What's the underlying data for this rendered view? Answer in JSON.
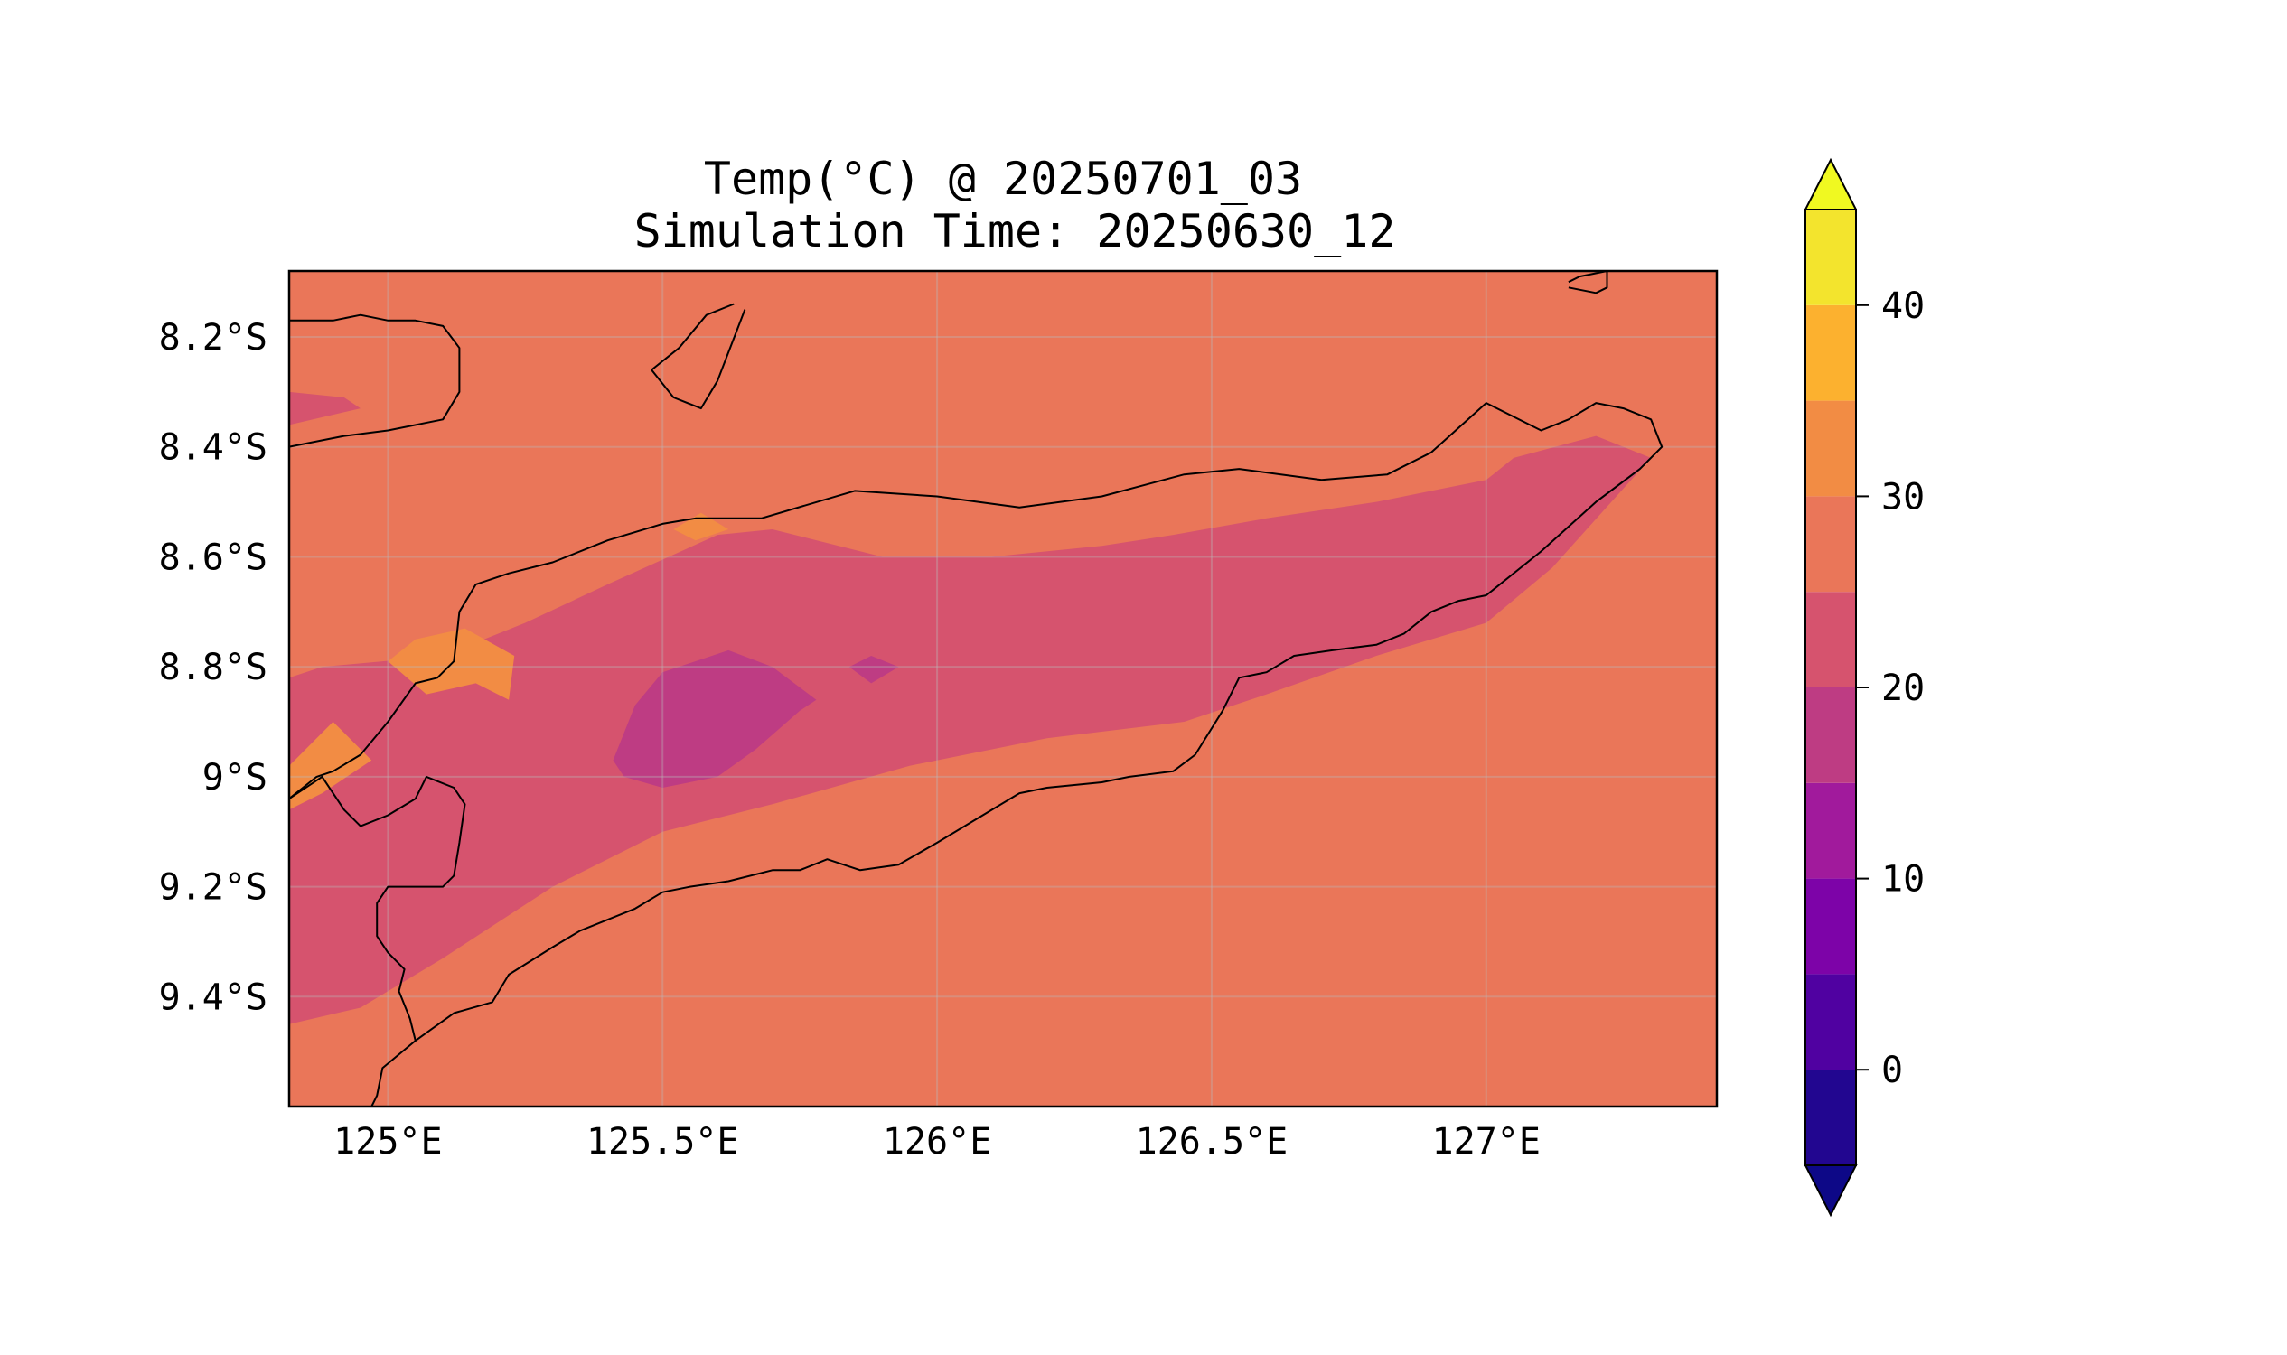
{
  "title": {
    "line1": "Temp(°C) @ 20250701_03",
    "line2": "Simulation Time: 20250630_12"
  },
  "map": {
    "lon_range": [
      124.82,
      127.42
    ],
    "lat_range": [
      -9.6,
      -8.08
    ],
    "gridlines": true,
    "lon_ticks": [
      {
        "value": 125.0,
        "label": "125°E"
      },
      {
        "value": 125.5,
        "label": "125.5°E"
      },
      {
        "value": 126.0,
        "label": "126°E"
      },
      {
        "value": 126.5,
        "label": "126.5°E"
      },
      {
        "value": 127.0,
        "label": "127°E"
      }
    ],
    "lat_ticks": [
      {
        "value": -8.2,
        "label": "8.2°S"
      },
      {
        "value": -8.4,
        "label": "8.4°S"
      },
      {
        "value": -8.6,
        "label": "8.6°S"
      },
      {
        "value": -8.8,
        "label": "8.8°S"
      },
      {
        "value": -9.0,
        "label": "9°S"
      },
      {
        "value": -9.2,
        "label": "9.2°S"
      },
      {
        "value": -9.4,
        "label": "9.4°S"
      }
    ],
    "background_color": "#ea7659",
    "contour_regions": [
      {
        "level": "20-25",
        "color": "#d6536e",
        "points": [
          [
            124.82,
            -8.82
          ],
          [
            124.88,
            -8.8
          ],
          [
            125.1,
            -8.78
          ],
          [
            125.25,
            -8.72
          ],
          [
            125.4,
            -8.65
          ],
          [
            125.6,
            -8.56
          ],
          [
            125.7,
            -8.55
          ],
          [
            125.9,
            -8.6
          ],
          [
            126.1,
            -8.6
          ],
          [
            126.3,
            -8.58
          ],
          [
            126.43,
            -8.56
          ],
          [
            126.6,
            -8.53
          ],
          [
            126.8,
            -8.5
          ],
          [
            126.9,
            -8.48
          ],
          [
            127.0,
            -8.46
          ],
          [
            127.05,
            -8.42
          ],
          [
            127.2,
            -8.38
          ],
          [
            127.3,
            -8.42
          ],
          [
            127.12,
            -8.62
          ],
          [
            127.0,
            -8.72
          ],
          [
            126.8,
            -8.78
          ],
          [
            126.6,
            -8.85
          ],
          [
            126.45,
            -8.9
          ],
          [
            126.2,
            -8.93
          ],
          [
            125.95,
            -8.98
          ],
          [
            125.7,
            -9.05
          ],
          [
            125.5,
            -9.1
          ],
          [
            125.3,
            -9.2
          ],
          [
            125.1,
            -9.33
          ],
          [
            124.95,
            -9.42
          ],
          [
            124.82,
            -9.45
          ]
        ]
      },
      {
        "level": "20-25",
        "color": "#d6536e",
        "points": [
          [
            124.82,
            -8.3
          ],
          [
            124.92,
            -8.31
          ],
          [
            124.95,
            -8.33
          ],
          [
            124.82,
            -8.36
          ]
        ]
      },
      {
        "level": "15-20",
        "color": "#be3c83",
        "points": [
          [
            125.41,
            -8.97
          ],
          [
            125.45,
            -8.87
          ],
          [
            125.5,
            -8.81
          ],
          [
            125.62,
            -8.77
          ],
          [
            125.7,
            -8.8
          ],
          [
            125.78,
            -8.86
          ],
          [
            125.75,
            -8.88
          ],
          [
            125.67,
            -8.95
          ],
          [
            125.6,
            -9.0
          ],
          [
            125.5,
            -9.02
          ],
          [
            125.43,
            -9.0
          ]
        ]
      },
      {
        "level": "15-20",
        "color": "#be3c83",
        "points": [
          [
            125.84,
            -8.8
          ],
          [
            125.88,
            -8.78
          ],
          [
            125.93,
            -8.8
          ],
          [
            125.88,
            -8.83
          ]
        ]
      },
      {
        "level": "30-35",
        "color": "#f28c44",
        "points": [
          [
            125.0,
            -8.79
          ],
          [
            125.05,
            -8.75
          ],
          [
            125.14,
            -8.73
          ],
          [
            125.23,
            -8.78
          ],
          [
            125.22,
            -8.86
          ],
          [
            125.16,
            -8.83
          ],
          [
            125.07,
            -8.85
          ]
        ]
      },
      {
        "level": "30-35",
        "color": "#f28c44",
        "points": [
          [
            124.82,
            -8.98
          ],
          [
            124.9,
            -8.9
          ],
          [
            124.97,
            -8.97
          ],
          [
            124.88,
            -9.03
          ],
          [
            124.82,
            -9.06
          ]
        ]
      },
      {
        "level": "30-35",
        "color": "#f28c44",
        "points": [
          [
            125.52,
            -8.55
          ],
          [
            125.57,
            -8.52
          ],
          [
            125.62,
            -8.55
          ],
          [
            125.56,
            -8.57
          ]
        ]
      }
    ],
    "coastlines": [
      {
        "name": "timor-north-coast",
        "points": [
          [
            124.82,
            -9.04
          ],
          [
            124.87,
            -9.0
          ],
          [
            124.9,
            -8.99
          ],
          [
            124.95,
            -8.96
          ],
          [
            125.0,
            -8.9
          ],
          [
            125.05,
            -8.83
          ],
          [
            125.09,
            -8.82
          ],
          [
            125.12,
            -8.79
          ],
          [
            125.13,
            -8.7
          ],
          [
            125.16,
            -8.65
          ],
          [
            125.22,
            -8.63
          ],
          [
            125.3,
            -8.61
          ],
          [
            125.4,
            -8.57
          ],
          [
            125.5,
            -8.54
          ],
          [
            125.56,
            -8.53
          ],
          [
            125.68,
            -8.53
          ],
          [
            125.85,
            -8.48
          ],
          [
            126.0,
            -8.49
          ],
          [
            126.15,
            -8.51
          ],
          [
            126.3,
            -8.49
          ],
          [
            126.45,
            -8.45
          ],
          [
            126.55,
            -8.44
          ],
          [
            126.7,
            -8.46
          ],
          [
            126.82,
            -8.45
          ],
          [
            126.9,
            -8.41
          ],
          [
            127.0,
            -8.32
          ],
          [
            127.1,
            -8.37
          ],
          [
            127.15,
            -8.35
          ],
          [
            127.2,
            -8.32
          ],
          [
            127.25,
            -8.33
          ],
          [
            127.3,
            -8.35
          ],
          [
            127.32,
            -8.4
          ],
          [
            127.28,
            -8.44
          ],
          [
            127.2,
            -8.5
          ],
          [
            127.1,
            -8.59
          ],
          [
            127.0,
            -8.67
          ],
          [
            126.95,
            -8.68
          ],
          [
            126.9,
            -8.7
          ],
          [
            126.85,
            -8.74
          ],
          [
            126.8,
            -8.76
          ],
          [
            126.72,
            -8.77
          ],
          [
            126.65,
            -8.78
          ],
          [
            126.6,
            -8.81
          ],
          [
            126.55,
            -8.82
          ],
          [
            126.52,
            -8.88
          ],
          [
            126.47,
            -8.96
          ],
          [
            126.43,
            -8.99
          ],
          [
            126.35,
            -9.0
          ],
          [
            126.3,
            -9.01
          ],
          [
            126.2,
            -9.02
          ],
          [
            126.15,
            -9.03
          ],
          [
            126.1,
            -9.06
          ],
          [
            126.0,
            -9.12
          ],
          [
            125.93,
            -9.16
          ],
          [
            125.86,
            -9.17
          ],
          [
            125.8,
            -9.15
          ],
          [
            125.75,
            -9.17
          ],
          [
            125.7,
            -9.17
          ],
          [
            125.62,
            -9.19
          ],
          [
            125.55,
            -9.2
          ],
          [
            125.5,
            -9.21
          ],
          [
            125.45,
            -9.24
          ],
          [
            125.35,
            -9.28
          ],
          [
            125.3,
            -9.31
          ],
          [
            125.22,
            -9.36
          ],
          [
            125.19,
            -9.41
          ],
          [
            125.12,
            -9.43
          ],
          [
            125.05,
            -9.48
          ],
          [
            124.99,
            -9.53
          ],
          [
            124.98,
            -9.58
          ],
          [
            124.97,
            -9.6
          ]
        ]
      },
      {
        "name": "border-west",
        "points": [
          [
            124.82,
            -9.04
          ],
          [
            124.88,
            -9.0
          ],
          [
            124.92,
            -9.06
          ],
          [
            124.95,
            -9.09
          ],
          [
            125.0,
            -9.07
          ],
          [
            125.05,
            -9.04
          ],
          [
            125.07,
            -9.0
          ],
          [
            125.12,
            -9.02
          ],
          [
            125.14,
            -9.05
          ],
          [
            125.13,
            -9.12
          ],
          [
            125.12,
            -9.18
          ],
          [
            125.1,
            -9.2
          ],
          [
            125.05,
            -9.2
          ],
          [
            125.0,
            -9.2
          ],
          [
            124.98,
            -9.23
          ],
          [
            124.98,
            -9.29
          ],
          [
            125.0,
            -9.32
          ],
          [
            125.03,
            -9.35
          ],
          [
            125.02,
            -9.39
          ],
          [
            125.04,
            -9.44
          ],
          [
            125.05,
            -9.48
          ]
        ]
      },
      {
        "name": "alor-south",
        "points": [
          [
            124.82,
            -8.4
          ],
          [
            124.92,
            -8.38
          ],
          [
            125.0,
            -8.37
          ],
          [
            125.1,
            -8.35
          ],
          [
            125.13,
            -8.3
          ],
          [
            125.13,
            -8.22
          ],
          [
            125.1,
            -8.18
          ],
          [
            125.05,
            -8.17
          ],
          [
            125.0,
            -8.17
          ],
          [
            124.95,
            -8.16
          ],
          [
            124.9,
            -8.17
          ],
          [
            124.82,
            -8.17
          ]
        ]
      },
      {
        "name": "atauro-island",
        "points": [
          [
            125.65,
            -8.15
          ],
          [
            125.6,
            -8.28
          ],
          [
            125.57,
            -8.33
          ],
          [
            125.52,
            -8.31
          ],
          [
            125.48,
            -8.26
          ],
          [
            125.53,
            -8.22
          ],
          [
            125.58,
            -8.16
          ],
          [
            125.63,
            -8.14
          ]
        ]
      },
      {
        "name": "wetar-east",
        "points": [
          [
            127.15,
            -8.1
          ],
          [
            127.17,
            -8.09
          ],
          [
            127.22,
            -8.08
          ],
          [
            127.22,
            -8.11
          ],
          [
            127.2,
            -8.12
          ],
          [
            127.15,
            -8.11
          ]
        ]
      }
    ]
  },
  "colorbar": {
    "vmin": -5,
    "vmax": 45,
    "extend": "both",
    "bins": [
      {
        "from": -5,
        "to": 0,
        "color": "#220690"
      },
      {
        "from": 0,
        "to": 5,
        "color": "#5001a1"
      },
      {
        "from": 5,
        "to": 10,
        "color": "#7d03a8"
      },
      {
        "from": 10,
        "to": 15,
        "color": "#a11a9c"
      },
      {
        "from": 15,
        "to": 20,
        "color": "#be3c83"
      },
      {
        "from": 20,
        "to": 25,
        "color": "#d6536e"
      },
      {
        "from": 25,
        "to": 30,
        "color": "#ea7659"
      },
      {
        "from": 30,
        "to": 35,
        "color": "#f28c44"
      },
      {
        "from": 35,
        "to": 40,
        "color": "#fcb12f"
      },
      {
        "from": 40,
        "to": 45,
        "color": "#f3e42d"
      }
    ],
    "under_color": "#0d0887",
    "over_color": "#f0f921",
    "ticks": [
      {
        "value": 0,
        "label": "0"
      },
      {
        "value": 10,
        "label": "10"
      },
      {
        "value": 20,
        "label": "20"
      },
      {
        "value": 30,
        "label": "30"
      },
      {
        "value": 40,
        "label": "40"
      }
    ]
  }
}
